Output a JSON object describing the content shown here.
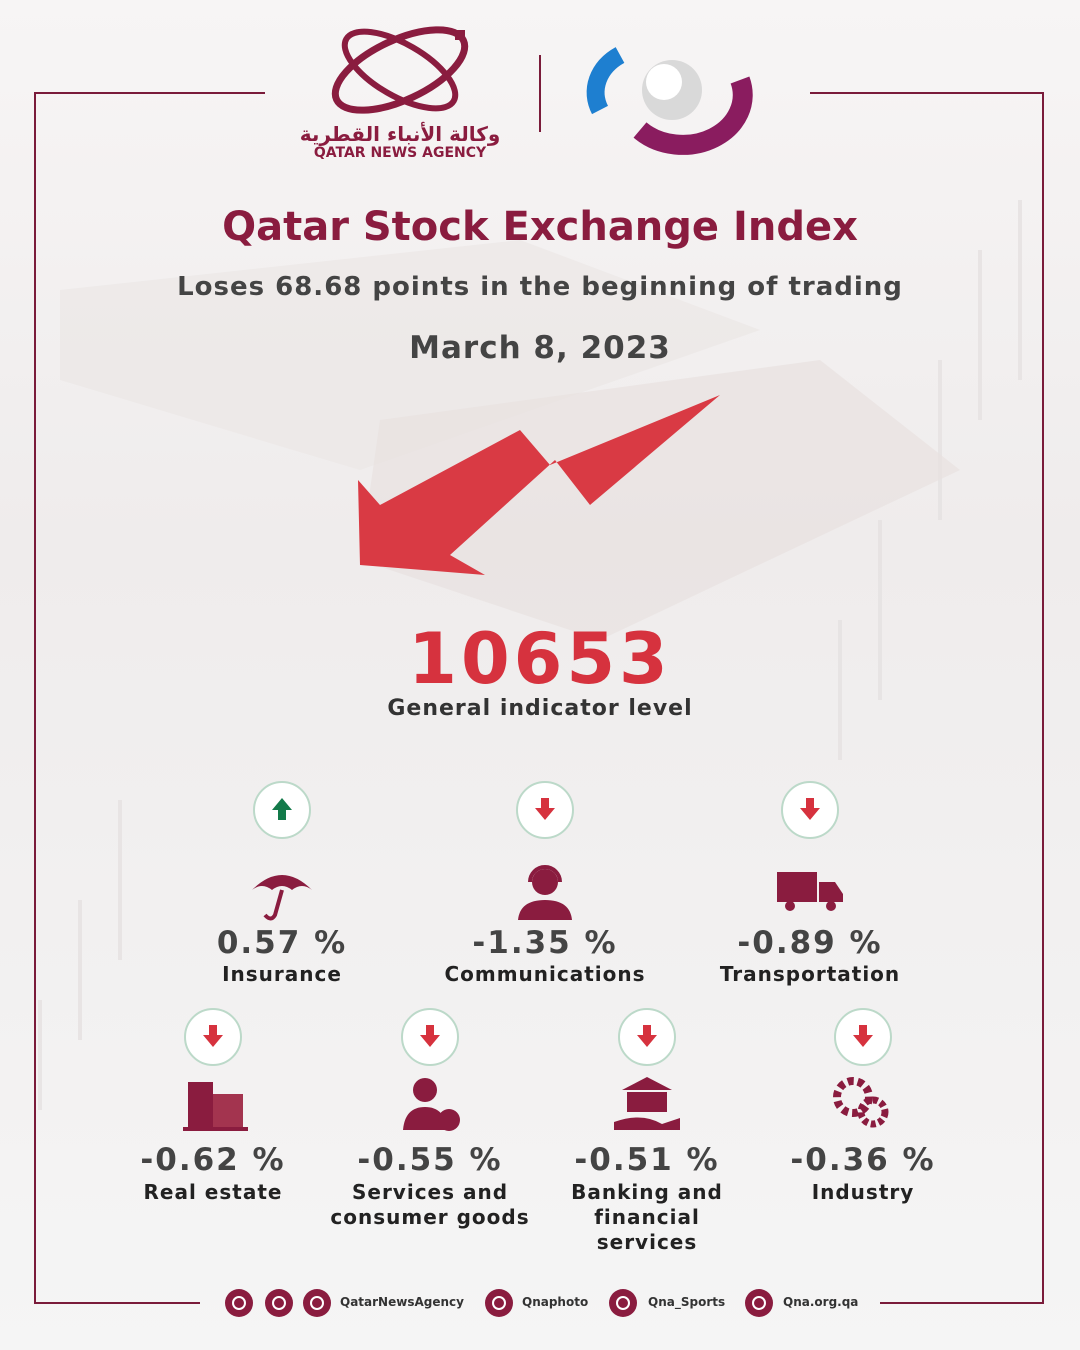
{
  "header": {
    "agency_arabic": "وكالة الأنباء القطرية",
    "agency_english": "QATAR NEWS AGENCY",
    "title": "Qatar Stock Exchange Index",
    "subtitle": "Loses 68.68 points in the beginning of trading",
    "date": "March 8, 2023"
  },
  "index": {
    "level": "10653",
    "label": "General indicator level"
  },
  "sectors": [
    {
      "change": "0.57 %",
      "name": "Insurance",
      "trend": "up"
    },
    {
      "change": "-1.35 %",
      "name": "Communications",
      "trend": "down"
    },
    {
      "change": "-0.89 %",
      "name": "Transportation",
      "trend": "down"
    },
    {
      "change": "-0.62 %",
      "name": "Real estate",
      "trend": "down"
    },
    {
      "change": "-0.55 %",
      "name": "Services and consumer goods",
      "trend": "down"
    },
    {
      "change": "-0.51 %",
      "name": "Banking and financial services",
      "trend": "down"
    },
    {
      "change": "-0.36 %",
      "name": "Industry",
      "trend": "down"
    }
  ],
  "footer": {
    "handles": [
      "QatarNewsAgency",
      "Qnaphoto",
      "Qna_Sports",
      "Qna.org.qa"
    ]
  }
}
